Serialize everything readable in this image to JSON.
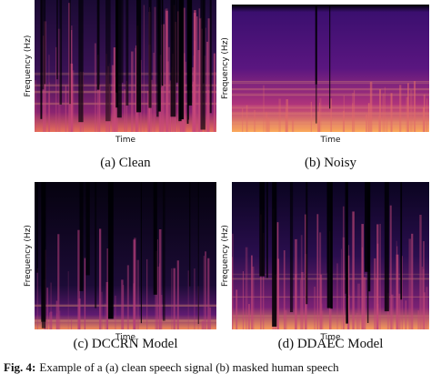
{
  "panels": [
    {
      "xlabel": "Time",
      "ylabel": "Frequency (Hz)",
      "caption": "(a) Clean"
    },
    {
      "xlabel": "Time",
      "ylabel": "Frequency (Hz)",
      "caption": "(b) Noisy"
    },
    {
      "xlabel": "Time",
      "ylabel": "Frequency (Hz)",
      "caption": "(c) DCCRN Model"
    },
    {
      "xlabel": "Time",
      "ylabel": "Frequency (Hz)",
      "caption": "(d) DDAEC Model"
    }
  ],
  "figure": {
    "label": "Fig. 4:",
    "caption": "Example of a (a) clean speech signal (b) masked human speech"
  }
}
